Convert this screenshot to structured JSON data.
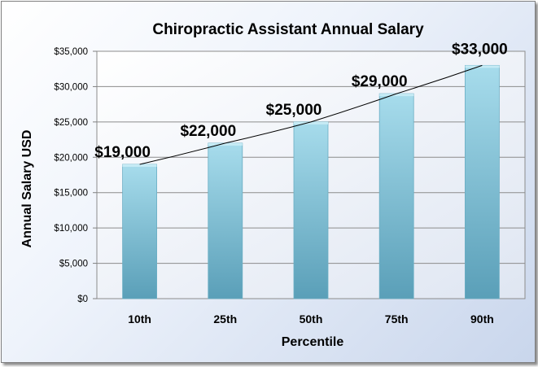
{
  "chart_data": {
    "type": "bar",
    "title": "Chiropractic Assistant Annual Salary",
    "xlabel": "Percentile",
    "ylabel": "Annual Salary USD",
    "categories": [
      "10th",
      "25th",
      "50th",
      "75th",
      "90th"
    ],
    "values": [
      19000,
      22000,
      25000,
      29000,
      33000
    ],
    "data_labels": [
      "$19,000",
      "$22,000",
      "$25,000",
      "$29,000",
      "$33,000"
    ],
    "ylim": [
      0,
      35000
    ],
    "yticks": [
      0,
      5000,
      10000,
      15000,
      20000,
      25000,
      30000,
      35000
    ],
    "ytick_labels": [
      "$0",
      "$5,000",
      "$10,000",
      "$15,000",
      "$20,000",
      "$25,000",
      "$30,000",
      "$35,000"
    ],
    "trendline": true,
    "grid": true,
    "legend": "none",
    "colors": {
      "bar_light": "#a7dcec",
      "bar_dark": "#5a9fb8",
      "trendline": "#000000",
      "gridline": "#8c8c8c"
    }
  }
}
